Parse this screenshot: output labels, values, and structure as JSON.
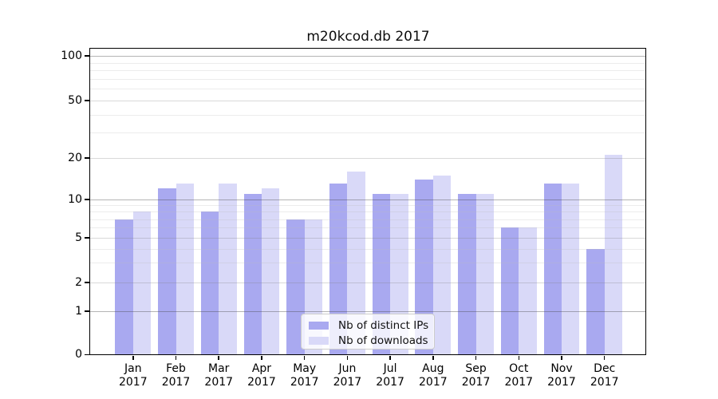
{
  "figure": {
    "title": "m20kcod.db 2017"
  },
  "chart_data": {
    "type": "bar",
    "title": "m20kcod.db 2017",
    "xlabel": "",
    "ylabel": "",
    "yscale": "symlog",
    "ylim": [
      0,
      112
    ],
    "grid": true,
    "legend_position": "lower center, inside axes",
    "yticks": [
      100,
      50,
      20,
      10,
      5,
      2,
      1,
      0
    ],
    "minor_gridlines": [
      90,
      80,
      70,
      60,
      40,
      30,
      9,
      8,
      7,
      6,
      4,
      3
    ],
    "categories": [
      "Jan 2017",
      "Feb 2017",
      "Mar 2017",
      "Apr 2017",
      "May 2017",
      "Jun 2017",
      "Jul 2017",
      "Aug 2017",
      "Sep 2017",
      "Oct 2017",
      "Nov 2017",
      "Dec 2017"
    ],
    "x_ticks": [
      {
        "month": "Jan",
        "year": "2017"
      },
      {
        "month": "Feb",
        "year": "2017"
      },
      {
        "month": "Mar",
        "year": "2017"
      },
      {
        "month": "Apr",
        "year": "2017"
      },
      {
        "month": "May",
        "year": "2017"
      },
      {
        "month": "Jun",
        "year": "2017"
      },
      {
        "month": "Jul",
        "year": "2017"
      },
      {
        "month": "Aug",
        "year": "2017"
      },
      {
        "month": "Sep",
        "year": "2017"
      },
      {
        "month": "Oct",
        "year": "2017"
      },
      {
        "month": "Nov",
        "year": "2017"
      },
      {
        "month": "Dec",
        "year": "2017"
      }
    ],
    "series": [
      {
        "name": "Nb of distinct IPs",
        "color": "#a9a9f0",
        "values": [
          7,
          12,
          8,
          11,
          7,
          13,
          11,
          14,
          11,
          6,
          13,
          4
        ]
      },
      {
        "name": "Nb of downloads",
        "color": "#d9d9f8",
        "values": [
          8,
          13,
          13,
          12,
          7,
          16,
          11,
          15,
          11,
          6,
          13,
          21
        ]
      }
    ]
  },
  "colors": {
    "background": "#ffffff",
    "spine": "#000000",
    "grid_major": "#b3b3b3",
    "grid_mid": "#d4d4d4",
    "grid_minor": "#e8e8e8",
    "text": "#000000",
    "legend_border": "#cccccc"
  }
}
